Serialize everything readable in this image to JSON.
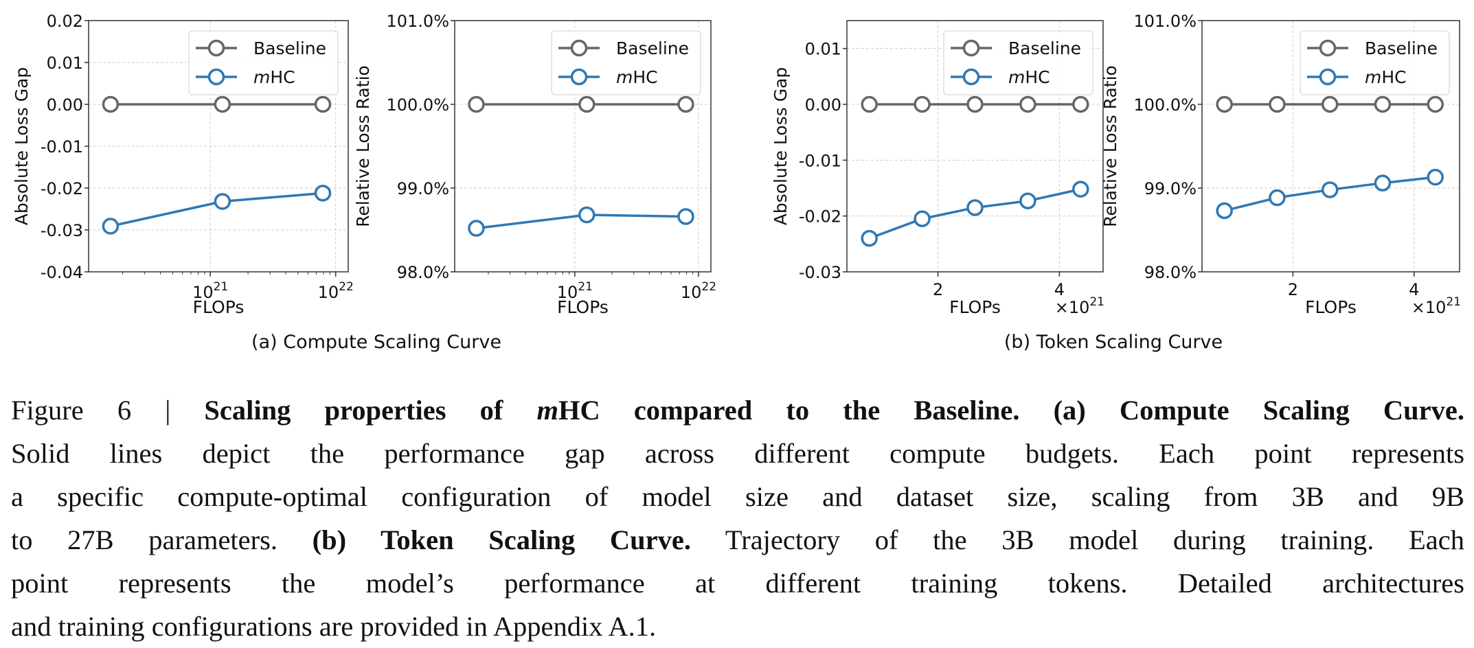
{
  "colors": {
    "baseline": "#666666",
    "mhc": "#2f78b4",
    "grid": "#cccccc",
    "axis": "#333333",
    "legend_border": "#dddddd"
  },
  "legend": {
    "entries": [
      {
        "name": "Baseline",
        "prefix_italic": "",
        "text": "Baseline"
      },
      {
        "name": "mHC",
        "prefix_italic": "m",
        "text": "HC"
      }
    ],
    "placement": "upper right"
  },
  "subtitles": {
    "a": "(a) Compute Scaling Curve",
    "b": "(b) Token Scaling Curve"
  },
  "chart_data": [
    {
      "type": "line",
      "panel": "a",
      "xlabel": "FLOPs",
      "ylabel": "Absolute Loss Gap",
      "xscale": "log",
      "xlim": [
        1.07e+20,
        1.26e+22
      ],
      "ylim": [
        -0.04,
        0.02
      ],
      "grid": true,
      "legend": "upper right",
      "xticks": [
        {
          "value": 1e+21,
          "base": "10",
          "exp": "21"
        },
        {
          "value": 1e+22,
          "base": "10",
          "exp": "22"
        }
      ],
      "yticks": [
        {
          "value": -0.04,
          "label": "-0.04"
        },
        {
          "value": -0.03,
          "label": "-0.03"
        },
        {
          "value": -0.02,
          "label": "-0.02"
        },
        {
          "value": -0.01,
          "label": "-0.01"
        },
        {
          "value": 0,
          "label": "0.00"
        },
        {
          "value": 0.01,
          "label": "0.01"
        },
        {
          "value": 0.02,
          "label": "0.02"
        }
      ],
      "x": [
        1.6e+20,
        1.25e+21,
        7.9e+21
      ],
      "series": [
        {
          "name": "Baseline",
          "values": [
            0,
            0,
            0
          ]
        },
        {
          "name": "mHC",
          "values": [
            -0.0291,
            -0.0232,
            -0.0212
          ]
        }
      ]
    },
    {
      "type": "line",
      "panel": "a",
      "xlabel": "FLOPs",
      "ylabel": "Relative Loss Ratio",
      "xscale": "log",
      "xlim": [
        1.07e+20,
        1.26e+22
      ],
      "ylim": [
        98.0,
        101.0
      ],
      "grid": true,
      "legend": "upper right",
      "xticks": [
        {
          "value": 1e+21,
          "base": "10",
          "exp": "21"
        },
        {
          "value": 1e+22,
          "base": "10",
          "exp": "22"
        }
      ],
      "yticks": [
        {
          "value": 98,
          "label": "98.0%"
        },
        {
          "value": 99,
          "label": "99.0%"
        },
        {
          "value": 100,
          "label": "100.0%"
        },
        {
          "value": 101,
          "label": "101.0%"
        }
      ],
      "x": [
        1.6e+20,
        1.25e+21,
        7.9e+21
      ],
      "series": [
        {
          "name": "Baseline",
          "values": [
            100,
            100,
            100
          ]
        },
        {
          "name": "mHC",
          "values": [
            98.52,
            98.68,
            98.66
          ]
        }
      ]
    },
    {
      "type": "line",
      "panel": "b",
      "xlabel": "FLOPs",
      "ylabel": "Absolute Loss Gap",
      "xscale": "linear",
      "xlim": [
        0.5,
        4.72
      ],
      "ylim": [
        -0.03,
        0.015
      ],
      "grid": true,
      "legend": "upper right",
      "x_multiplier": {
        "prefix": "×10",
        "exp": "21"
      },
      "xticks": [
        {
          "value": 2,
          "label": "2"
        },
        {
          "value": 4,
          "label": "4"
        }
      ],
      "yticks": [
        {
          "value": -0.03,
          "label": "-0.03"
        },
        {
          "value": -0.02,
          "label": "-0.02"
        },
        {
          "value": -0.01,
          "label": "-0.01"
        },
        {
          "value": 0,
          "label": "0.00"
        },
        {
          "value": 0.01,
          "label": "0.01"
        }
      ],
      "x": [
        0.87,
        1.74,
        2.61,
        3.48,
        4.35
      ],
      "series": [
        {
          "name": "Baseline",
          "values": [
            0,
            0,
            0,
            0,
            0
          ]
        },
        {
          "name": "mHC",
          "values": [
            -0.024,
            -0.0205,
            -0.0185,
            -0.0173,
            -0.0152
          ]
        }
      ]
    },
    {
      "type": "line",
      "panel": "b",
      "xlabel": "FLOPs",
      "ylabel": "Relative Loss Ratio",
      "xscale": "linear",
      "xlim": [
        0.5,
        4.75
      ],
      "ylim": [
        98.0,
        101.0
      ],
      "grid": true,
      "legend": "upper right",
      "x_multiplier": {
        "prefix": "×10",
        "exp": "21"
      },
      "xticks": [
        {
          "value": 2,
          "label": "2"
        },
        {
          "value": 4,
          "label": "4"
        }
      ],
      "yticks": [
        {
          "value": 98,
          "label": "98.0%"
        },
        {
          "value": 99,
          "label": "99.0%"
        },
        {
          "value": 100,
          "label": "100.0%"
        },
        {
          "value": 101,
          "label": "101.0%"
        }
      ],
      "x": [
        0.87,
        1.74,
        2.61,
        3.48,
        4.35
      ],
      "series": [
        {
          "name": "Baseline",
          "values": [
            100,
            100,
            100,
            100,
            100
          ]
        },
        {
          "name": "mHC",
          "values": [
            98.73,
            98.885,
            98.98,
            99.06,
            99.13
          ]
        }
      ]
    }
  ],
  "caption": {
    "lines": [
      [
        {
          "t": "Figure 6 | ",
          "s": ""
        },
        {
          "t": "Scaling properties of ",
          "s": "b"
        },
        {
          "t": "m",
          "s": "bi"
        },
        {
          "t": "HC compared to the Baseline. (a) Compute Scaling Curve.",
          "s": "b"
        }
      ],
      [
        {
          "t": "Solid lines depict the performance gap across different compute budgets. Each point represents",
          "s": ""
        }
      ],
      [
        {
          "t": "a specific compute-optimal configuration of model size and dataset size, scaling from 3B and 9B",
          "s": ""
        }
      ],
      [
        {
          "t": "to 27B parameters. ",
          "s": ""
        },
        {
          "t": "(b) Token Scaling Curve.",
          "s": "b"
        },
        {
          "t": " Trajectory of the 3B model during training. Each",
          "s": ""
        }
      ],
      [
        {
          "t": "point represents the model’s performance at different training tokens. Detailed architectures",
          "s": ""
        }
      ],
      [
        {
          "t": "and training configurations are provided in Appendix A.1.",
          "s": ""
        }
      ]
    ]
  }
}
